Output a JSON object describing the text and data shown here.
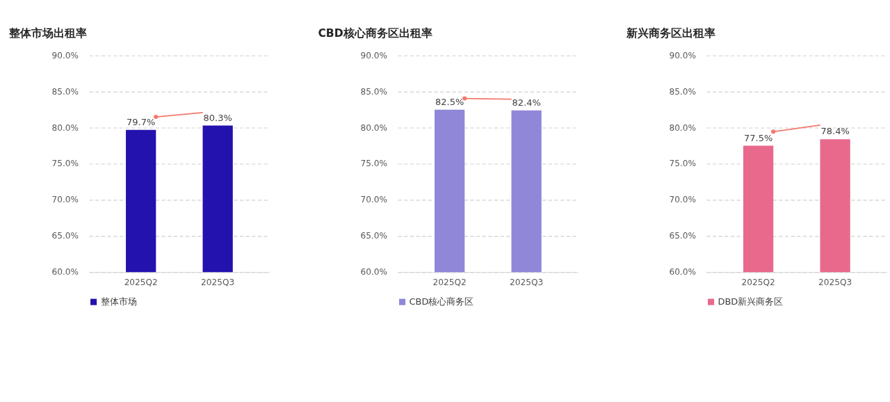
{
  "chart_data": [
    {
      "type": "bar",
      "title": "整体市场出租率",
      "categories": [
        "2025Q2",
        "2025Q3"
      ],
      "series": [
        {
          "name": "整体市场",
          "color": "#2312ad",
          "values": [
            79.7,
            80.3
          ]
        }
      ],
      "ylim": [
        60,
        90
      ],
      "yticks": [
        {
          "value": 60,
          "label": "60.0%"
        },
        {
          "value": 65,
          "label": "65.0%"
        },
        {
          "value": 70,
          "label": "70.0%"
        },
        {
          "value": 75,
          "label": "75.0%"
        },
        {
          "value": 80,
          "label": "80.0%"
        },
        {
          "value": 85,
          "label": "85.0%"
        },
        {
          "value": 90,
          "label": "90.0%"
        }
      ],
      "grid": "y",
      "legend": "bottom",
      "value_labels": [
        "79.7%",
        "80.3%"
      ]
    },
    {
      "type": "bar",
      "title": "CBD核心商务区出租率",
      "categories": [
        "2025Q2",
        "2025Q3"
      ],
      "series": [
        {
          "name": "CBD核心商务区",
          "color": "#9087d8",
          "values": [
            82.5,
            82.4
          ]
        }
      ],
      "ylim": [
        60,
        90
      ],
      "yticks": [
        {
          "value": 60,
          "label": "60.0%"
        },
        {
          "value": 65,
          "label": "65.0%"
        },
        {
          "value": 70,
          "label": "70.0%"
        },
        {
          "value": 75,
          "label": "75.0%"
        },
        {
          "value": 80,
          "label": "80.0%"
        },
        {
          "value": 85,
          "label": "85.0%"
        },
        {
          "value": 90,
          "label": "90.0%"
        }
      ],
      "grid": "y",
      "legend": "bottom",
      "value_labels": [
        "82.5%",
        "82.4%"
      ]
    },
    {
      "type": "bar",
      "title": "新兴商务区出租率",
      "categories": [
        "2025Q2",
        "2025Q3"
      ],
      "series": [
        {
          "name": "DBD新兴商务区",
          "color": "#e8698c",
          "values": [
            77.5,
            78.4
          ]
        }
      ],
      "ylim": [
        60,
        90
      ],
      "yticks": [
        {
          "value": 60,
          "label": "60.0%"
        },
        {
          "value": 65,
          "label": "65.0%"
        },
        {
          "value": 70,
          "label": "70.0%"
        },
        {
          "value": 75,
          "label": "75.0%"
        },
        {
          "value": 80,
          "label": "80.0%"
        },
        {
          "value": 85,
          "label": "85.0%"
        },
        {
          "value": 90,
          "label": "90.0%"
        }
      ],
      "grid": "y",
      "legend": "bottom",
      "value_labels": [
        "77.5%",
        "78.4%"
      ]
    }
  ]
}
